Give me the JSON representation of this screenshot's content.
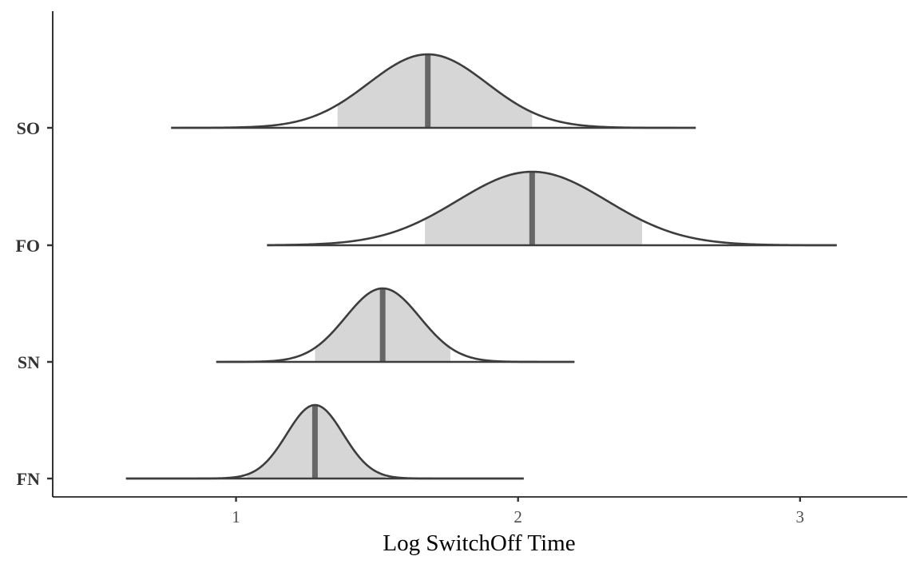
{
  "chart_data": {
    "type": "ridgeline",
    "title": "",
    "xlabel": "Log SwitchOff Time",
    "ylabel": "",
    "xlim": [
      0.35,
      3.38
    ],
    "xticks": [
      1,
      2,
      3
    ],
    "categories": [
      "SO",
      "FO",
      "SN",
      "FN"
    ],
    "grid": false,
    "series": [
      {
        "name": "SO",
        "median": 1.68,
        "sd": 0.21,
        "interval": [
          1.36,
          2.05
        ],
        "range": [
          0.77,
          2.63
        ]
      },
      {
        "name": "FO",
        "median": 2.05,
        "sd": 0.265,
        "interval": [
          1.67,
          2.44
        ],
        "range": [
          1.11,
          3.13
        ]
      },
      {
        "name": "SN",
        "median": 1.52,
        "sd": 0.132,
        "interval": [
          1.28,
          1.76
        ],
        "range": [
          0.93,
          2.2
        ]
      },
      {
        "name": "FN",
        "median": 1.28,
        "sd": 0.1,
        "interval": [
          1.04,
          1.53
        ],
        "range": [
          0.61,
          2.02
        ]
      }
    ]
  }
}
